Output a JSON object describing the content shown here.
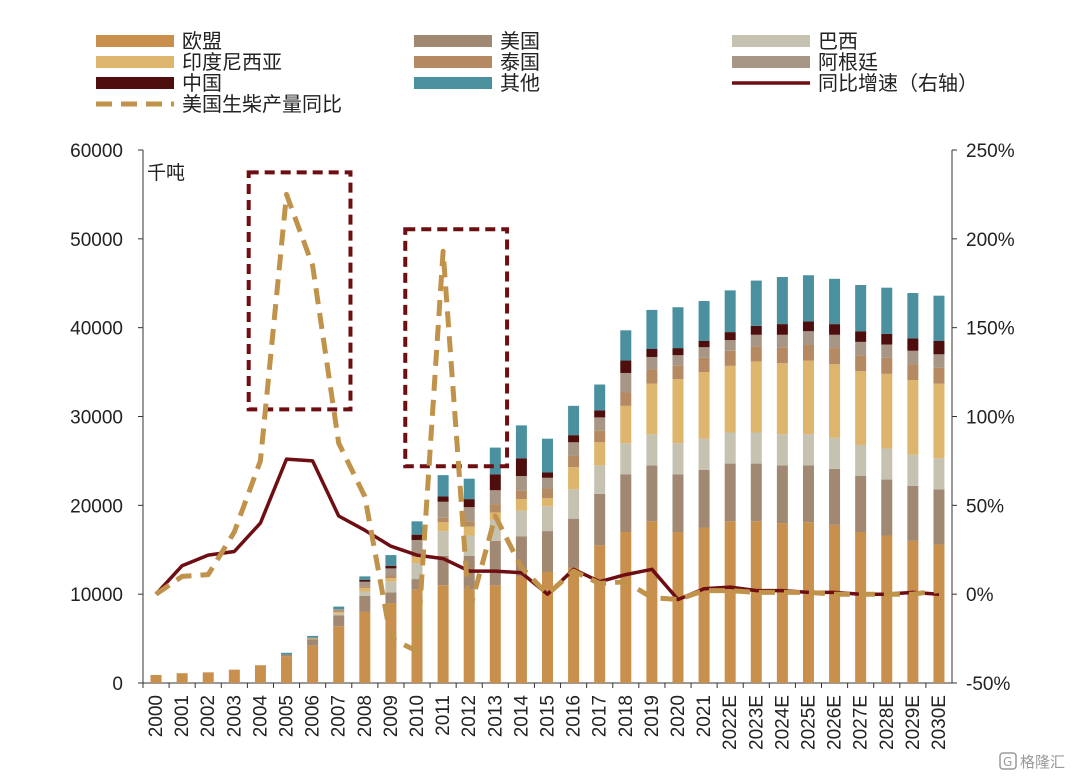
{
  "chart_data": {
    "type": "bar",
    "stacked": true,
    "unit_label": "千吨",
    "categories": [
      "2000",
      "2001",
      "2002",
      "2003",
      "2004",
      "2005",
      "2006",
      "2007",
      "2008",
      "2009",
      "2010",
      "2011",
      "2012",
      "2013",
      "2014",
      "2015",
      "2016",
      "2017",
      "2018",
      "2019",
      "2020",
      "2021",
      "2022E",
      "2023E",
      "2024E",
      "2025E",
      "2026E",
      "2027E",
      "2028E",
      "2029E",
      "2030E"
    ],
    "ylim_left": [
      0,
      60000
    ],
    "yticks_left": [
      "0",
      "10000",
      "20000",
      "30000",
      "40000",
      "50000",
      "60000"
    ],
    "ylim_right": [
      -50,
      250
    ],
    "yticks_right": [
      "-50%",
      "0%",
      "50%",
      "100%",
      "150%",
      "200%",
      "250%"
    ],
    "legend_placement": "top",
    "series": [
      {
        "name": "欧盟",
        "color": "#C8904C",
        "values": [
          900,
          1100,
          1200,
          1500,
          2000,
          3000,
          4200,
          6400,
          8000,
          9000,
          10500,
          11000,
          10500,
          11000,
          12000,
          12500,
          13000,
          15500,
          17000,
          18200,
          17000,
          17500,
          18200,
          18200,
          18000,
          18100,
          17800,
          17000,
          16600,
          16000,
          15600
        ]
      },
      {
        "name": "美国",
        "color": "#A08872",
        "values": [
          0,
          0,
          0,
          0,
          0,
          200,
          700,
          1200,
          1800,
          1200,
          1200,
          3300,
          3800,
          5000,
          4500,
          4600,
          5500,
          5800,
          6500,
          6300,
          6500,
          6500,
          6500,
          6500,
          6500,
          6400,
          6300,
          6300,
          6300,
          6200,
          6200
        ]
      },
      {
        "name": "巴西",
        "color": "#C5C2B2",
        "values": [
          0,
          0,
          0,
          0,
          0,
          0,
          0,
          200,
          500,
          1200,
          1800,
          2800,
          2300,
          2400,
          2900,
          2800,
          3300,
          3200,
          3500,
          3500,
          3500,
          3500,
          3500,
          3500,
          3500,
          3500,
          3500,
          3500,
          3500,
          3500,
          3500
        ]
      },
      {
        "name": "印度尼西亚",
        "color": "#DDB56C",
        "values": [
          0,
          0,
          0,
          0,
          0,
          0,
          100,
          200,
          400,
          400,
          700,
          1000,
          1000,
          800,
          1300,
          900,
          2500,
          2600,
          4200,
          5700,
          7200,
          7500,
          7500,
          8000,
          8000,
          8300,
          8300,
          8300,
          8400,
          8400,
          8400
        ]
      },
      {
        "name": "泰国",
        "color": "#B58A62",
        "values": [
          0,
          0,
          0,
          0,
          0,
          0,
          0,
          100,
          200,
          300,
          400,
          500,
          600,
          900,
          1000,
          1100,
          1300,
          1300,
          1500,
          1600,
          1500,
          1600,
          1700,
          1700,
          1800,
          1800,
          1800,
          1800,
          1800,
          1800,
          1800
        ]
      },
      {
        "name": "阿根廷",
        "color": "#A79686",
        "values": [
          0,
          0,
          0,
          0,
          0,
          0,
          100,
          200,
          500,
          800,
          1500,
          1800,
          1600,
          1600,
          1600,
          1200,
          1500,
          1500,
          2200,
          1400,
          1200,
          1200,
          1200,
          1300,
          1400,
          1500,
          1500,
          1500,
          1500,
          1500,
          1500
        ]
      },
      {
        "name": "中国",
        "color": "#4E0E0E",
        "values": [
          0,
          0,
          0,
          0,
          0,
          0,
          0,
          0,
          200,
          300,
          600,
          600,
          900,
          1800,
          2000,
          600,
          800,
          800,
          1400,
          900,
          800,
          700,
          900,
          1000,
          1200,
          1100,
          1200,
          1200,
          1200,
          1400,
          1500
        ]
      },
      {
        "name": "其他",
        "color": "#4A909E",
        "values": [
          0,
          0,
          0,
          0,
          0,
          200,
          200,
          300,
          400,
          1200,
          1500,
          2400,
          2300,
          3000,
          3700,
          3800,
          3300,
          2900,
          3400,
          4400,
          4600,
          4500,
          4700,
          5100,
          5300,
          5200,
          5100,
          5200,
          5200,
          5100,
          5100
        ]
      }
    ],
    "lines": [
      {
        "name": "同比增速（右轴）",
        "axis": "right",
        "color": "#6E0E12",
        "style": "solid",
        "values": [
          0,
          16,
          22,
          24,
          40,
          76,
          75,
          44,
          36,
          27,
          22,
          20,
          13,
          13,
          12,
          0,
          14,
          7,
          11,
          14,
          -3,
          3,
          4,
          2,
          2,
          1,
          1,
          0,
          0,
          1,
          0
        ]
      },
      {
        "name": "美国生柴产量同比",
        "axis": "right",
        "color": "#C0924A",
        "style": "dashed",
        "values": [
          0,
          10,
          11,
          35,
          75,
          225,
          185,
          85,
          55,
          -25,
          -32,
          193,
          -10,
          44,
          15,
          0,
          13,
          6,
          7,
          -2,
          -3,
          2,
          2,
          1,
          1,
          1,
          0,
          0,
          0,
          0,
          2
        ]
      }
    ],
    "highlight_boxes": [
      {
        "from": "2004",
        "to": "2007"
      },
      {
        "from": "2010",
        "to": "2013"
      }
    ]
  },
  "watermark": {
    "icon": "gelonghui-logo-icon",
    "text": "格隆汇"
  }
}
